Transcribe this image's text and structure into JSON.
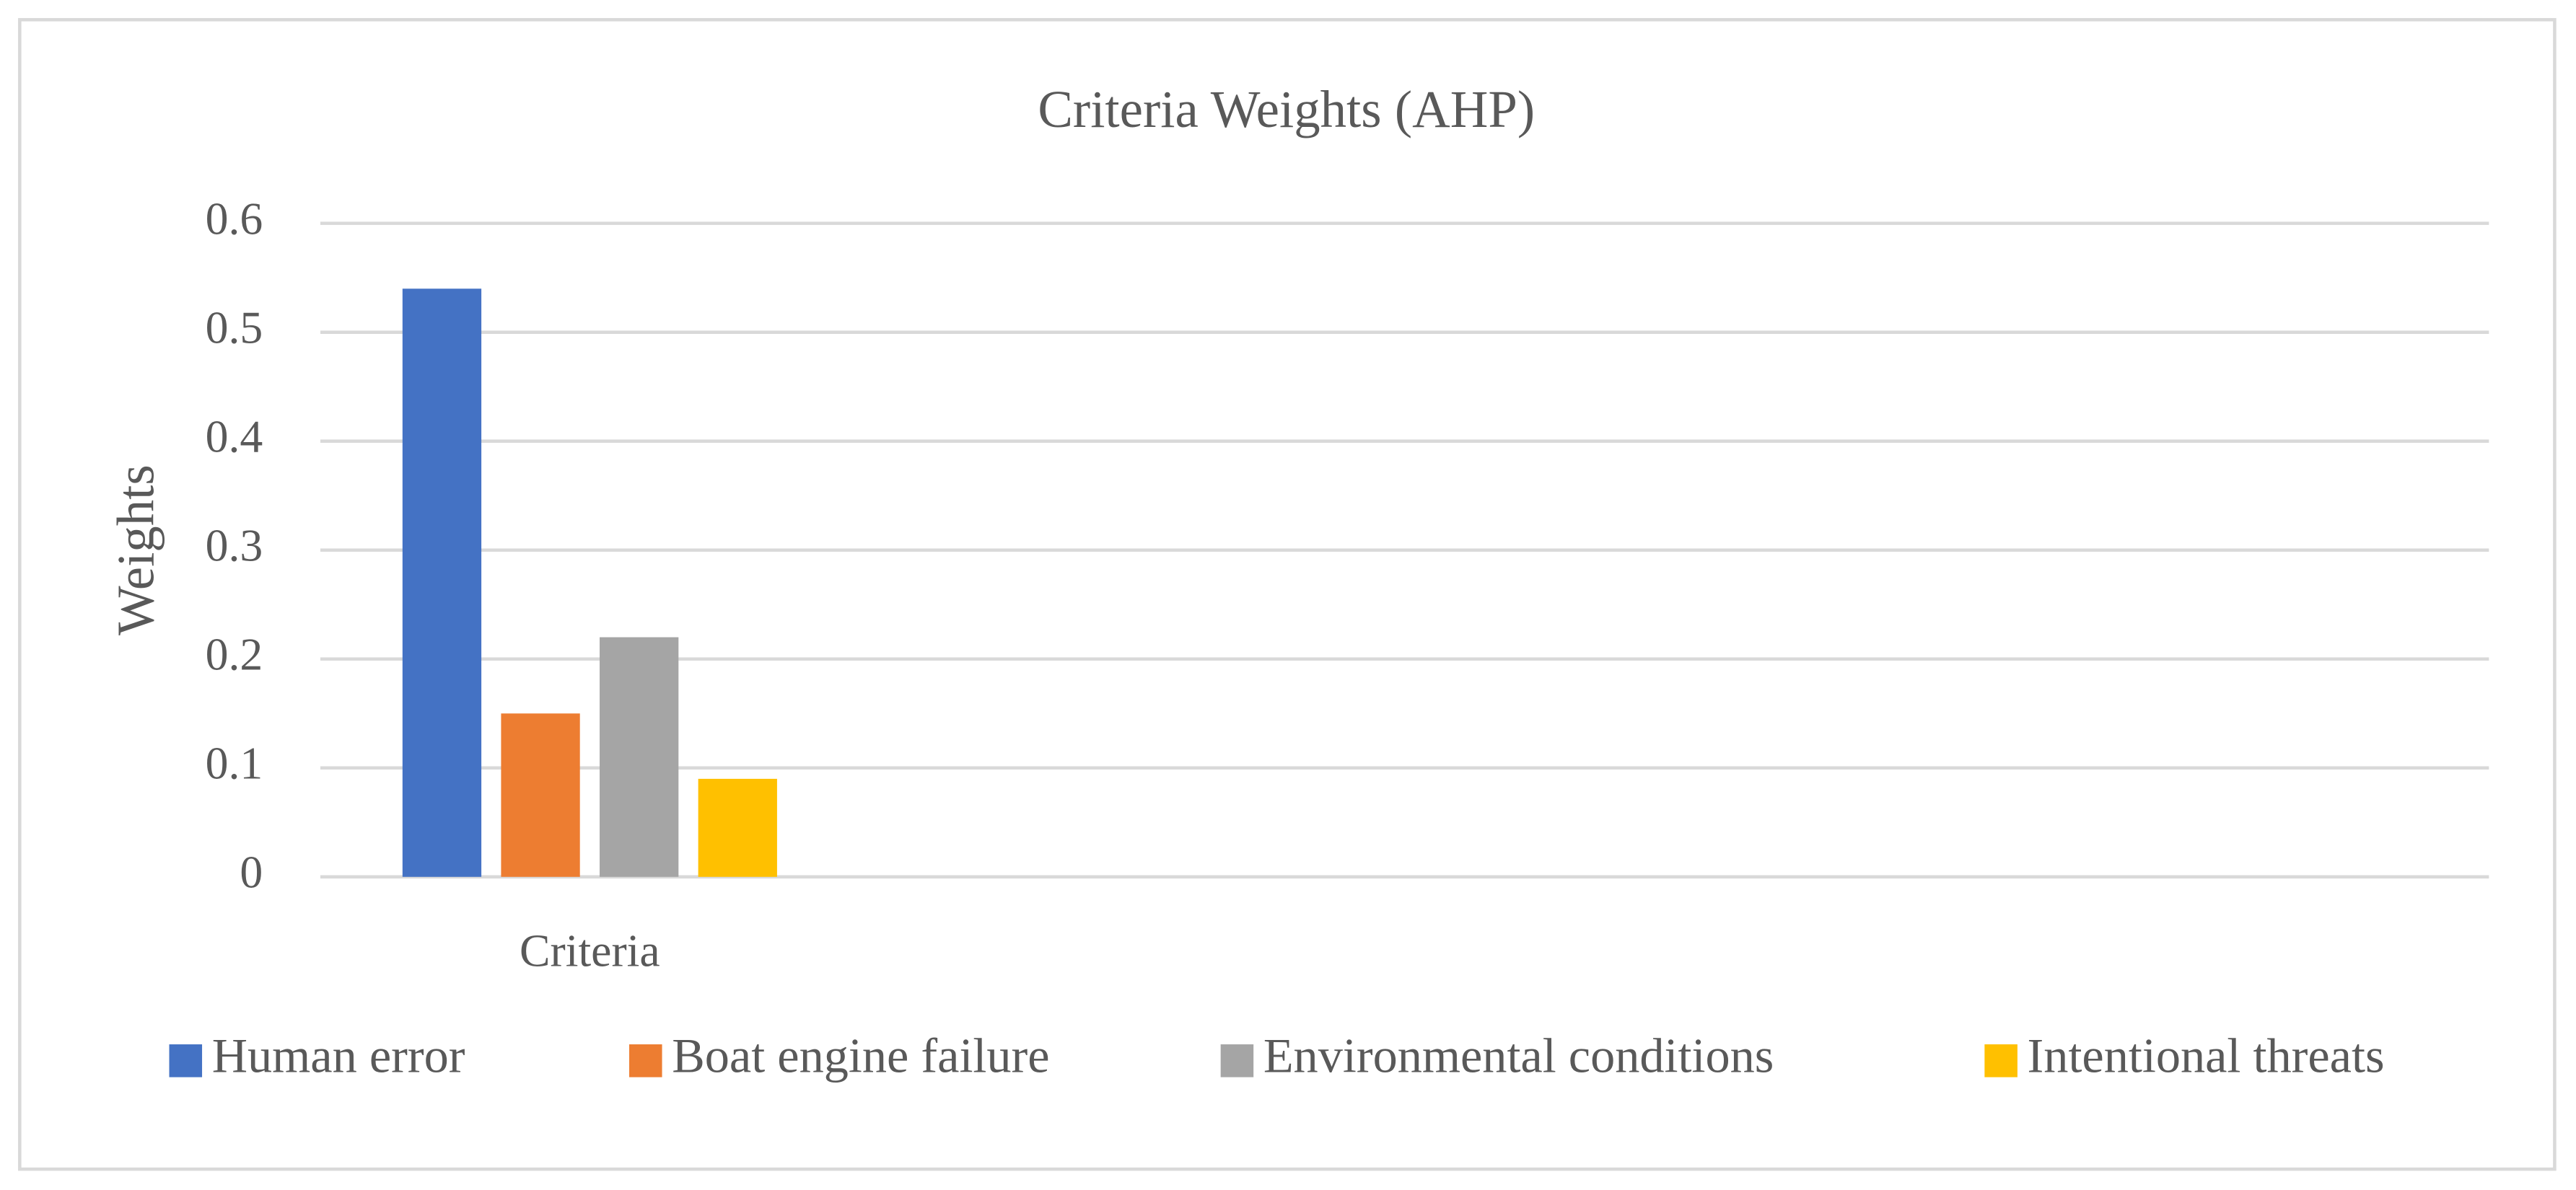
{
  "chart_data": {
    "type": "bar",
    "title": "Criteria Weights (AHP)",
    "y_label": "Weights",
    "categories": [
      "Criteria"
    ],
    "series": [
      {
        "name": "Human error",
        "color": "#4472c4",
        "values": [
          0.54
        ]
      },
      {
        "name": "Boat engine failure",
        "color": "#ed7d31",
        "values": [
          0.15
        ]
      },
      {
        "name": "Environmental conditions",
        "color": "#a5a5a5",
        "values": [
          0.22
        ]
      },
      {
        "name": "Intentional threats",
        "color": "#ffc000",
        "values": [
          0.09
        ]
      }
    ],
    "ylim": [
      0,
      0.6
    ],
    "yticks": [
      0,
      0.1,
      0.2,
      0.3,
      0.4,
      0.5,
      0.6
    ],
    "grid": true,
    "legend": "bottom"
  }
}
